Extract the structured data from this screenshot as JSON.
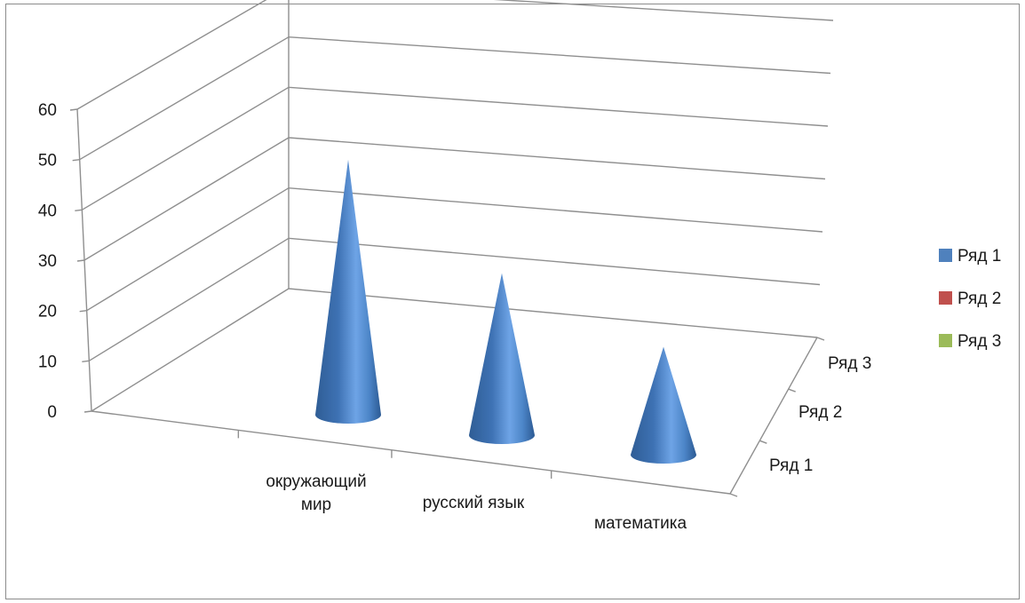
{
  "chart_data": {
    "type": "bar",
    "subtype": "3d-cone",
    "title": "",
    "categories": [
      "окружающий мир",
      "русский язык",
      "математика"
    ],
    "category_lines": [
      [
        "окружающий",
        "мир"
      ],
      [
        "русский язык"
      ],
      [
        "математика"
      ]
    ],
    "series": [
      {
        "name": "Ряд 1",
        "color": "#4f81bd",
        "values": [
          52,
          33,
          22
        ]
      },
      {
        "name": "Ряд 2",
        "color": "#c0504d",
        "values": [
          0,
          0,
          0
        ]
      },
      {
        "name": "Ряд 3",
        "color": "#9bbb59",
        "values": [
          0,
          0,
          0
        ]
      }
    ],
    "depth_labels": [
      "Ряд 1",
      "Ряд 2",
      "Ряд 3"
    ],
    "y_ticks": [
      "0",
      "10",
      "20",
      "30",
      "40",
      "50",
      "60"
    ],
    "ylim": [
      0,
      60
    ],
    "grid": true,
    "legend_position": "right"
  }
}
